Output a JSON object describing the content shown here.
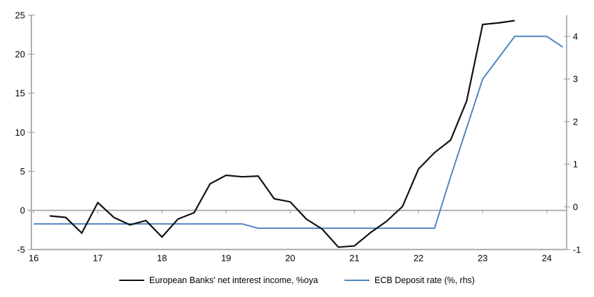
{
  "figure": {
    "background_color": "#ffffff"
  },
  "chart_data": {
    "type": "line",
    "title": "",
    "xlabel": "",
    "ylabel": "",
    "legend_position": "bottom-center",
    "grid": {
      "zero_line": true,
      "vertical_gridlines": false,
      "axis_color": "#a6a6a6"
    },
    "x_axis": {
      "min": 16,
      "max": 24.31,
      "ticks": [
        16,
        17,
        18,
        19,
        20,
        21,
        22,
        23,
        24
      ]
    },
    "left_axis": {
      "min": -5,
      "max": 25,
      "ticks": [
        -5,
        0,
        5,
        10,
        15,
        20,
        25
      ]
    },
    "right_axis": {
      "min": -1,
      "max": 4.5,
      "ticks": [
        -1,
        0,
        1,
        2,
        3,
        4
      ]
    },
    "series": [
      {
        "name": "European Banks' net interest income, %oya",
        "axis": "left",
        "color": "#111111",
        "stroke_width": 2.2,
        "x": [
          16.25,
          16.5,
          16.75,
          17.0,
          17.25,
          17.5,
          17.75,
          18.0,
          18.25,
          18.5,
          18.75,
          19.0,
          19.25,
          19.5,
          19.75,
          20.0,
          20.25,
          20.5,
          20.75,
          21.0,
          21.25,
          21.5,
          21.75,
          22.0,
          22.25,
          22.5,
          22.75,
          23.0,
          23.25,
          23.5
        ],
        "values": [
          -0.7,
          -0.9,
          -2.9,
          1.0,
          -0.9,
          -1.85,
          -1.3,
          -3.4,
          -1.1,
          -0.3,
          3.4,
          4.5,
          4.3,
          4.4,
          1.5,
          1.1,
          -1.1,
          -2.4,
          -4.7,
          -4.55,
          -2.85,
          -1.4,
          0.5,
          5.3,
          7.4,
          9.0,
          14.0,
          23.8,
          24.0,
          24.3
        ]
      },
      {
        "name": "ECB Deposit rate (%, rhs)",
        "axis": "right",
        "color": "#4f86c2",
        "stroke_width": 2,
        "x": [
          16.0,
          16.25,
          16.5,
          16.75,
          17.0,
          17.25,
          17.5,
          17.75,
          18.0,
          18.25,
          18.5,
          18.75,
          19.0,
          19.25,
          19.5,
          19.75,
          20.0,
          20.25,
          20.5,
          20.75,
          21.0,
          21.25,
          21.5,
          21.75,
          22.0,
          22.25,
          22.5,
          22.75,
          23.0,
          23.25,
          23.5,
          23.75,
          24.0,
          24.25
        ],
        "values": [
          -0.4,
          -0.4,
          -0.4,
          -0.4,
          -0.4,
          -0.4,
          -0.4,
          -0.4,
          -0.4,
          -0.4,
          -0.4,
          -0.4,
          -0.4,
          -0.4,
          -0.5,
          -0.5,
          -0.5,
          -0.5,
          -0.5,
          -0.5,
          -0.5,
          -0.5,
          -0.5,
          -0.5,
          -0.5,
          -0.5,
          0.7,
          1.85,
          3.0,
          3.5,
          4.0,
          4.0,
          4.0,
          3.75
        ]
      }
    ]
  }
}
